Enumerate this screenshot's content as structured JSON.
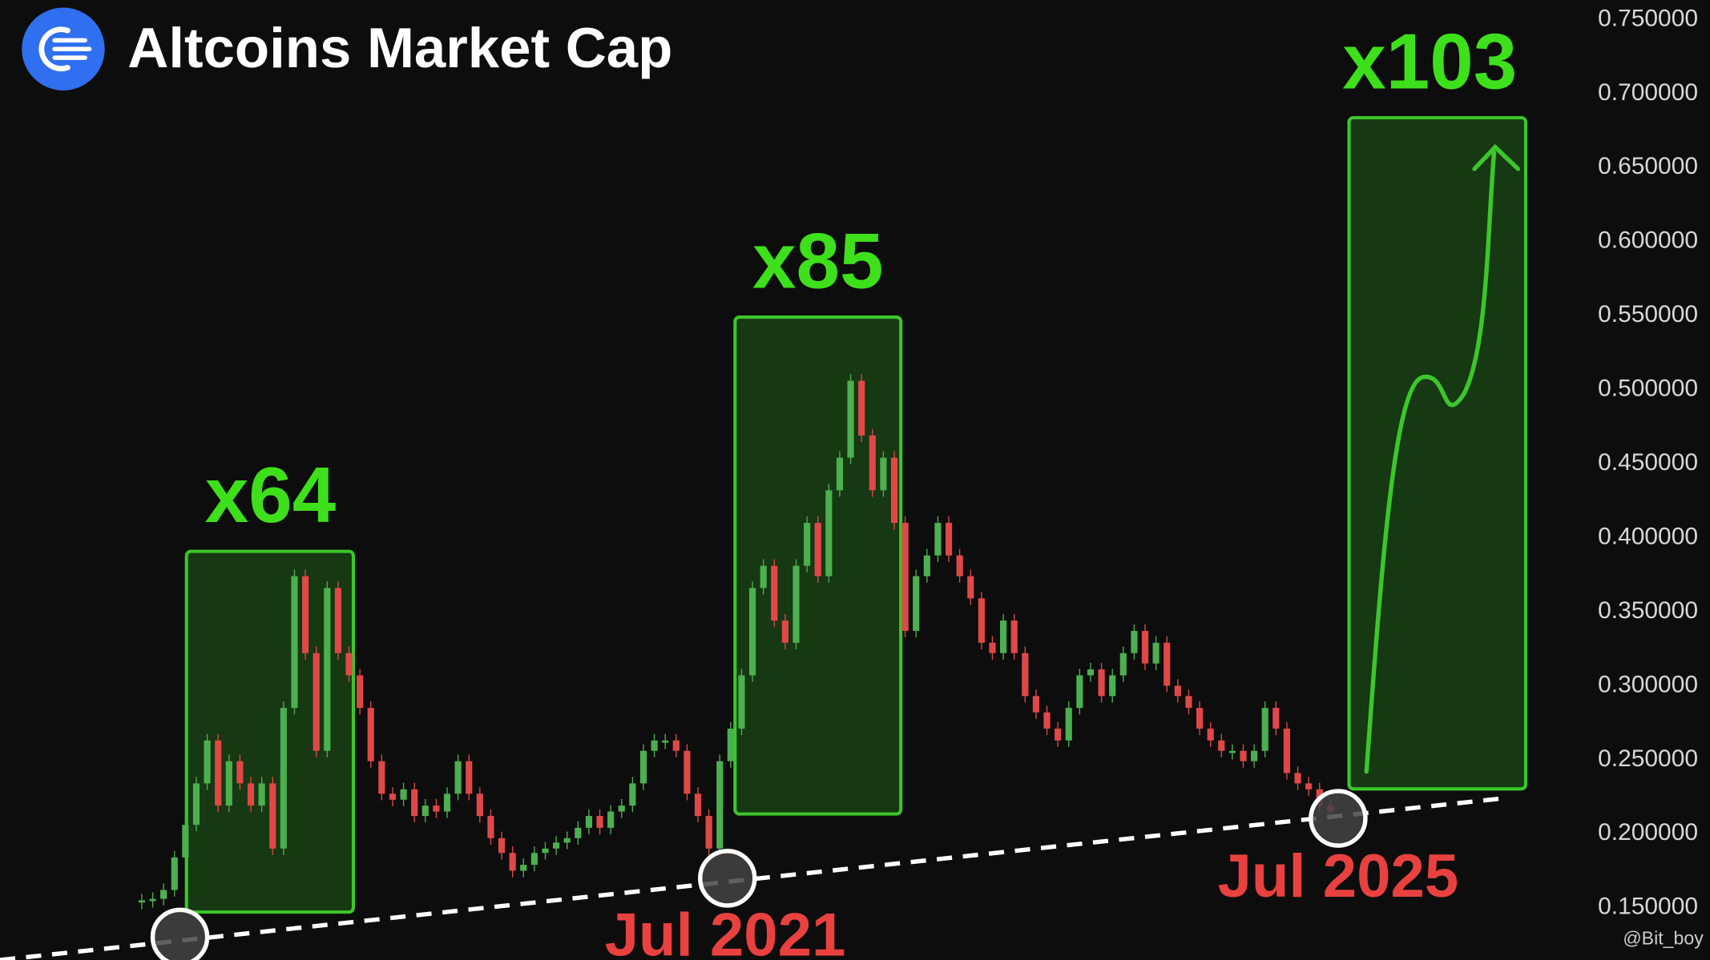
{
  "chart_data": {
    "type": "candle",
    "title": "Altcoins Market Cap",
    "values": [
      0.155,
      0.156,
      0.162,
      0.184,
      0.206,
      0.234,
      0.263,
      0.219,
      0.249,
      0.234,
      0.219,
      0.234,
      0.19,
      0.285,
      0.374,
      0.322,
      0.256,
      0.366,
      0.322,
      0.307,
      0.285,
      0.249,
      0.227,
      0.223,
      0.23,
      0.212,
      0.219,
      0.215,
      0.227,
      0.249,
      0.227,
      0.212,
      0.197,
      0.187,
      0.175,
      0.179,
      0.187,
      0.19,
      0.194,
      0.197,
      0.204,
      0.212,
      0.204,
      0.215,
      0.219,
      0.234,
      0.256,
      0.263,
      0.263,
      0.256,
      0.227,
      0.212,
      0.19,
      0.249,
      0.271,
      0.307,
      0.366,
      0.381,
      0.344,
      0.329,
      0.381,
      0.41,
      0.374,
      0.432,
      0.454,
      0.506,
      0.469,
      0.432,
      0.454,
      0.41,
      0.337,
      0.374,
      0.388,
      0.41,
      0.388,
      0.374,
      0.359,
      0.329,
      0.322,
      0.344,
      0.322,
      0.293,
      0.282,
      0.271,
      0.263,
      0.285,
      0.307,
      0.311,
      0.293,
      0.307,
      0.322,
      0.337,
      0.315,
      0.329,
      0.3,
      0.293,
      0.285,
      0.271,
      0.263,
      0.256,
      0.256,
      0.249,
      0.256,
      0.285,
      0.271,
      0.241,
      0.234,
      0.23,
      0.219,
      0.215
    ],
    "up_color": "#4caf50",
    "down_color": "#e04848",
    "ylim": [
      0.1147,
      0.7632
    ],
    "yticks": [
      {
        "value": 0.75,
        "label": "0.750000"
      },
      {
        "value": 0.7,
        "label": "0.700000"
      },
      {
        "value": 0.65,
        "label": "0.650000"
      },
      {
        "value": 0.6,
        "label": "0.600000"
      },
      {
        "value": 0.55,
        "label": "0.550000"
      },
      {
        "value": 0.5,
        "label": "0.500000"
      },
      {
        "value": 0.45,
        "label": "0.450000"
      },
      {
        "value": 0.4,
        "label": "0.400000"
      },
      {
        "value": 0.35,
        "label": "0.350000"
      },
      {
        "value": 0.3,
        "label": "0.300000"
      },
      {
        "value": 0.25,
        "label": "0.250000"
      },
      {
        "value": 0.2,
        "label": "0.200000"
      },
      {
        "value": 0.15,
        "label": "0.150000"
      }
    ],
    "annotations": [
      "x64",
      "x85",
      "x103",
      "Jul 2021",
      "Jul 2025"
    ],
    "watermark": "@Bit_boy"
  }
}
